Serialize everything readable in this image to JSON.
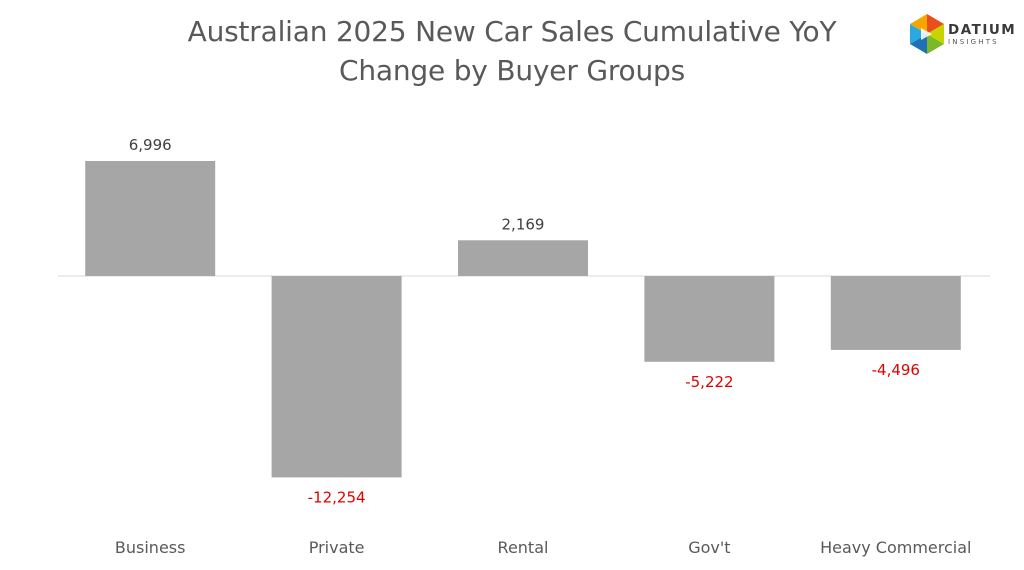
{
  "title_line1": "Australian 2025 New Car Sales Cumulative YoY",
  "title_line2": "Change by Buyer Groups",
  "logo": {
    "name": "DATIUM",
    "sub": "INSIGHTS"
  },
  "colors": {
    "bar": "#a6a6a6",
    "positive_label": "#404040",
    "negative_label": "#e00000",
    "axis": "#d9d9d9",
    "title": "#595959"
  },
  "chart_data": {
    "type": "bar",
    "title": "Australian 2025 New Car Sales Cumulative YoY Change by Buyer Groups",
    "categories": [
      "Business",
      "Private",
      "Rental",
      "Gov't",
      "Heavy Commercial"
    ],
    "values": [
      6996,
      -12254,
      2169,
      -5222,
      -4496
    ],
    "value_labels": [
      "6,996",
      "-12,254",
      "2,169",
      "-5,222",
      "-4,496"
    ],
    "xlabel": "",
    "ylabel": "",
    "grid": false,
    "legend": "none"
  }
}
